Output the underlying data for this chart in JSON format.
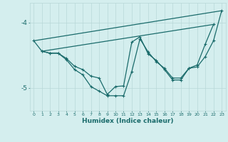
{
  "xlabel": "Humidex (Indice chaleur)",
  "bg_color": "#d4eeee",
  "grid_color": "#b8d8d8",
  "line_color": "#1a6b6b",
  "xlim": [
    -0.5,
    23.5
  ],
  "ylim": [
    -5.35,
    -3.7
  ],
  "yticks": [
    -5,
    -4
  ],
  "ytick_labels": [
    "-5",
    "-4"
  ],
  "xticks": [
    0,
    1,
    2,
    3,
    4,
    5,
    6,
    7,
    8,
    9,
    10,
    11,
    12,
    13,
    14,
    15,
    16,
    17,
    18,
    19,
    20,
    21,
    22,
    23
  ],
  "line1_x": [
    0,
    1,
    2,
    3,
    4,
    5,
    6,
    7,
    8,
    9,
    10,
    11,
    12,
    13,
    14,
    15,
    16,
    17,
    18,
    19,
    20,
    21,
    22,
    23
  ],
  "line1_y": [
    -4.28,
    -4.44,
    -4.47,
    -4.47,
    -4.55,
    -4.67,
    -4.72,
    -4.82,
    -4.85,
    -5.1,
    -4.98,
    -4.97,
    -4.3,
    -4.22,
    -4.48,
    -4.58,
    -4.72,
    -4.88,
    -4.88,
    -4.7,
    -4.68,
    -4.52,
    -4.28,
    -3.82
  ],
  "line2_x": [
    1,
    2,
    3,
    4,
    5,
    6,
    7,
    8,
    9,
    10,
    11,
    12,
    13,
    14,
    15,
    16,
    17,
    18,
    19,
    20,
    21,
    22
  ],
  "line2_y": [
    -4.44,
    -4.47,
    -4.47,
    -4.57,
    -4.72,
    -4.8,
    -4.98,
    -5.05,
    -5.12,
    -5.12,
    -5.12,
    -4.75,
    -4.25,
    -4.45,
    -4.6,
    -4.7,
    -4.85,
    -4.85,
    -4.7,
    -4.65,
    -4.33,
    -4.03
  ],
  "line3_x": [
    0,
    23
  ],
  "line3_y": [
    -4.28,
    -3.82
  ],
  "line4_x": [
    1,
    22
  ],
  "line4_y": [
    -4.44,
    -4.03
  ]
}
